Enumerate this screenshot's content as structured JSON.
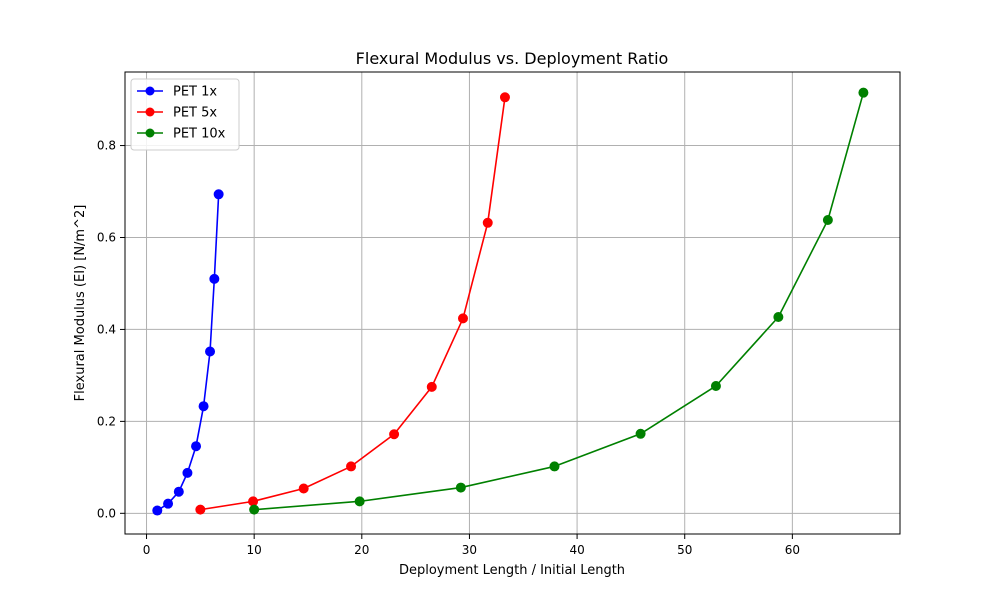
{
  "chart_data": {
    "type": "line",
    "title": "Flexural Modulus vs. Deployment Ratio",
    "xlabel": "Deployment Length / Initial Length",
    "ylabel": "Flexural Modulus (EI) [N/m^2]",
    "xlim": [
      -2.0,
      70.0
    ],
    "ylim": [
      -0.045,
      0.96
    ],
    "x_ticks": [
      0,
      10,
      20,
      30,
      40,
      50,
      60
    ],
    "y_ticks": [
      0.0,
      0.2,
      0.4,
      0.6,
      0.8
    ],
    "x_tick_labels": [
      "0",
      "10",
      "20",
      "30",
      "40",
      "50",
      "60"
    ],
    "y_tick_labels": [
      "0.0",
      "0.2",
      "0.4",
      "0.6",
      "0.8"
    ],
    "grid": true,
    "legend_position": "top-left",
    "series": [
      {
        "name": "PET 1x",
        "color": "#0000ff",
        "marker": "circle",
        "x": [
          1.0,
          2.0,
          3.0,
          3.8,
          4.6,
          5.3,
          5.9,
          6.3,
          6.7
        ],
        "y": [
          0.006,
          0.021,
          0.047,
          0.088,
          0.146,
          0.233,
          0.352,
          0.51,
          0.694
        ]
      },
      {
        "name": "PET 5x",
        "color": "#ff0000",
        "marker": "circle",
        "x": [
          5.0,
          9.9,
          14.6,
          19.0,
          23.0,
          26.5,
          29.4,
          31.7,
          33.3
        ],
        "y": [
          0.008,
          0.026,
          0.054,
          0.102,
          0.172,
          0.275,
          0.424,
          0.632,
          0.905
        ]
      },
      {
        "name": "PET 10x",
        "color": "#008000",
        "marker": "circle",
        "x": [
          10.0,
          19.8,
          29.2,
          37.9,
          45.9,
          52.9,
          58.7,
          63.3,
          66.6
        ],
        "y": [
          0.008,
          0.026,
          0.056,
          0.102,
          0.173,
          0.277,
          0.427,
          0.638,
          0.915
        ]
      }
    ]
  }
}
